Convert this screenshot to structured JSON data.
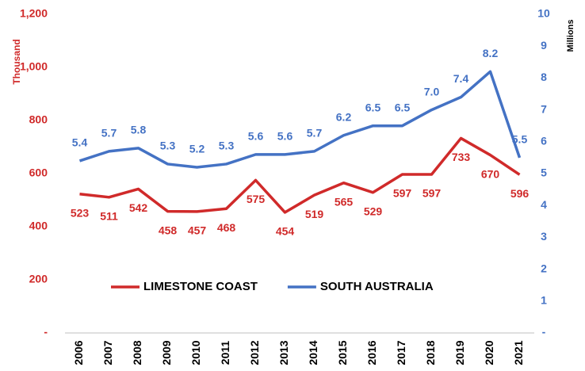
{
  "chart_data": {
    "type": "line",
    "categories": [
      "2006",
      "2007",
      "2008",
      "2009",
      "2010",
      "2011",
      "2012",
      "2013",
      "2014",
      "2015",
      "2016",
      "2017",
      "2018",
      "2019",
      "2020",
      "2021"
    ],
    "series": [
      {
        "name": "LIMESTONE COAST",
        "color": "#d02a2a",
        "axis": "y",
        "values": [
          523,
          511,
          542,
          458,
          457,
          468,
          575,
          454,
          519,
          565,
          529,
          597,
          597,
          733,
          670,
          596
        ]
      },
      {
        "name": "SOUTH AUSTRALIA",
        "color": "#4472c4",
        "axis": "y2",
        "values": [
          5.4,
          5.7,
          5.8,
          5.3,
          5.2,
          5.3,
          5.6,
          5.6,
          5.7,
          6.2,
          6.5,
          6.5,
          7.0,
          7.4,
          8.2,
          5.5
        ],
        "value_labels": [
          "5.4",
          "5.7",
          "5.8",
          "5.3",
          "5.2",
          "5.3",
          "5.6",
          "5.6",
          "5.7",
          "6.2",
          "6.5",
          "6.5",
          "7.0",
          "7.4",
          "8.2",
          "5.5"
        ]
      }
    ],
    "ylabel": "Thousand",
    "y2label": "Millions",
    "ylim": [
      0,
      1200
    ],
    "yticks": [
      {
        "value": 0,
        "label": "-"
      },
      200,
      400,
      600,
      800,
      {
        "value": 1000,
        "label": "1,000"
      },
      {
        "value": 1200,
        "label": "1,200"
      }
    ],
    "y2lim": [
      0,
      10
    ],
    "y2ticks": [
      {
        "value": 0,
        "label": "-"
      },
      1,
      2,
      3,
      4,
      5,
      6,
      7,
      8,
      9,
      10
    ],
    "legend": "center",
    "grid": false
  }
}
